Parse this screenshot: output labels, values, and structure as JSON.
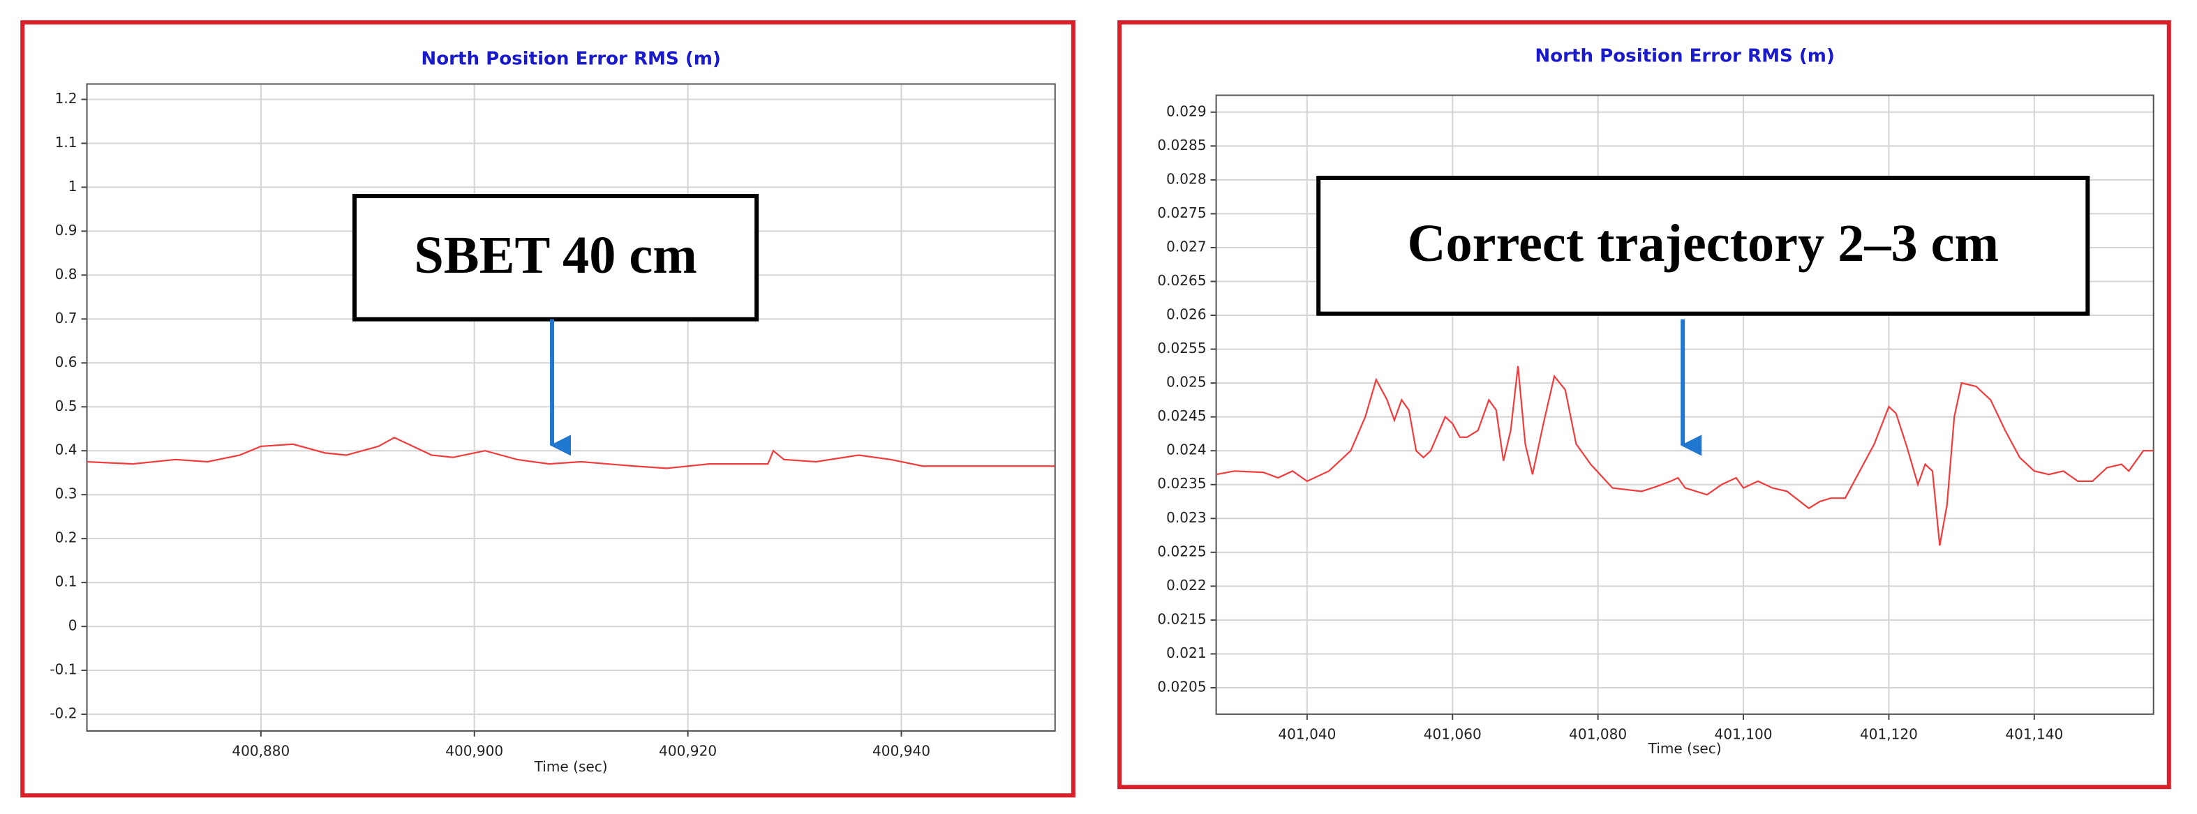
{
  "chart_data": [
    {
      "type": "line",
      "title": "North Position Error RMS (m)",
      "x_label": "Time (sec)",
      "annotation": "SBET 40 cm",
      "color": "#f03c3c",
      "grid": true,
      "x": [
        400863.7,
        400868,
        400872,
        400875,
        400878,
        400880,
        400883,
        400886,
        400888,
        400891,
        400892.5,
        400896,
        400898,
        400901,
        400904,
        400907,
        400910,
        400915,
        400918,
        400922,
        400926,
        400927.5,
        400928,
        400929,
        400932,
        400936,
        400939,
        400942,
        400948,
        400954.4
      ],
      "values": [
        0.375,
        0.37,
        0.38,
        0.375,
        0.39,
        0.41,
        0.415,
        0.395,
        0.39,
        0.41,
        0.43,
        0.39,
        0.385,
        0.4,
        0.38,
        0.37,
        0.375,
        0.365,
        0.36,
        0.37,
        0.37,
        0.37,
        0.4,
        0.38,
        0.375,
        0.39,
        0.38,
        0.365,
        0.365,
        0.365
      ],
      "xlim": [
        400863.7,
        400954.4
      ],
      "ylim": [
        -0.238,
        1.235
      ],
      "xticks": [
        {
          "value": 400880,
          "label": "400,880"
        },
        {
          "value": 400900,
          "label": "400,900"
        },
        {
          "value": 400920,
          "label": "400,920"
        },
        {
          "value": 400940,
          "label": "400,940"
        }
      ],
      "yticks": [
        -0.2,
        -0.1,
        0,
        0.1,
        0.2,
        0.3,
        0.4,
        0.5,
        0.6,
        0.7,
        0.8,
        0.9,
        1,
        1.1,
        1.2
      ]
    },
    {
      "type": "line",
      "title": "North Position Error RMS (m)",
      "x_label": "Time (sec)",
      "annotation": "Correct trajectory 2–3 cm",
      "color": "#f03c3c",
      "grid": true,
      "x": [
        401027.5,
        401030,
        401034,
        401036,
        401038,
        401040,
        401043,
        401046,
        401048,
        401049.5,
        401051,
        401052,
        401053,
        401054,
        401055,
        401056,
        401057,
        401059,
        401060,
        401061,
        401062,
        401063.5,
        401065,
        401066,
        401067,
        401068,
        401069,
        401070,
        401071,
        401072.5,
        401074,
        401075.5,
        401077,
        401079,
        401082,
        401086,
        401088,
        401090,
        401091,
        401092,
        401095,
        401097,
        401099,
        401100,
        401102,
        401104,
        401106,
        401109,
        401110.5,
        401112,
        401114,
        401116,
        401118,
        401120,
        401121,
        401122.5,
        401124,
        401125,
        401126,
        401127,
        401128,
        401129,
        401130,
        401132,
        401134,
        401136,
        401138,
        401140,
        401142,
        401144,
        401146,
        401148,
        401150,
        401152,
        401153,
        401155,
        401156.4
      ],
      "values": [
        0.02365,
        0.0237,
        0.02368,
        0.0236,
        0.0237,
        0.02355,
        0.0237,
        0.024,
        0.0245,
        0.02505,
        0.02475,
        0.02445,
        0.02475,
        0.0246,
        0.024,
        0.0239,
        0.024,
        0.0245,
        0.0244,
        0.0242,
        0.0242,
        0.0243,
        0.02475,
        0.0246,
        0.02385,
        0.0243,
        0.02525,
        0.0241,
        0.02365,
        0.0244,
        0.0251,
        0.0249,
        0.0241,
        0.0238,
        0.02345,
        0.0234,
        0.02347,
        0.02355,
        0.0236,
        0.02345,
        0.02335,
        0.0235,
        0.0236,
        0.02345,
        0.02355,
        0.02345,
        0.0234,
        0.02315,
        0.02325,
        0.0233,
        0.0233,
        0.0237,
        0.0241,
        0.02465,
        0.02455,
        0.02405,
        0.0235,
        0.0238,
        0.0237,
        0.0226,
        0.0232,
        0.0245,
        0.025,
        0.02495,
        0.02475,
        0.0243,
        0.0239,
        0.0237,
        0.02365,
        0.0237,
        0.02355,
        0.02355,
        0.02375,
        0.0238,
        0.0237,
        0.024,
        0.024
      ],
      "xlim": [
        401027.5,
        401156.4
      ],
      "ylim": [
        0.02011,
        0.02925
      ],
      "xticks": [
        {
          "value": 401040,
          "label": "401,040"
        },
        {
          "value": 401060,
          "label": "401,060"
        },
        {
          "value": 401080,
          "label": "401,080"
        },
        {
          "value": 401100,
          "label": "401,100"
        },
        {
          "value": 401120,
          "label": "401,120"
        },
        {
          "value": 401140,
          "label": "401,140"
        }
      ],
      "yticks": [
        0.0205,
        0.021,
        0.0215,
        0.022,
        0.0225,
        0.023,
        0.0235,
        0.024,
        0.0245,
        0.025,
        0.0255,
        0.026,
        0.0265,
        0.027,
        0.0275,
        0.028,
        0.0285,
        0.029
      ]
    }
  ]
}
